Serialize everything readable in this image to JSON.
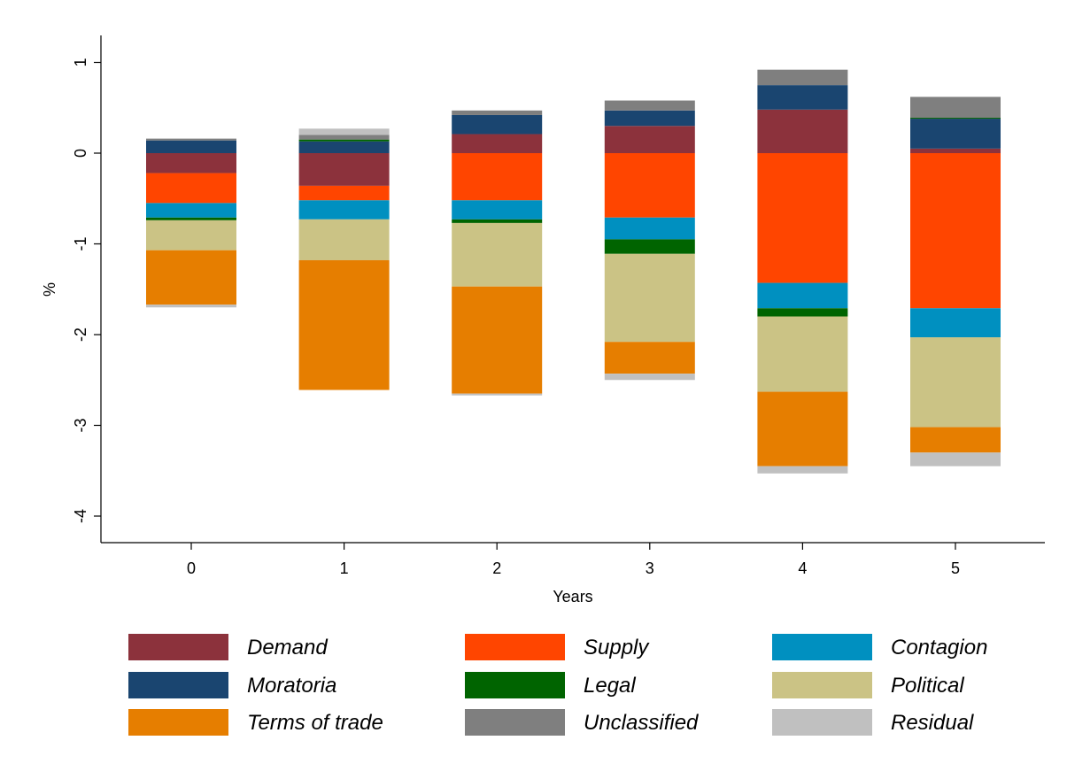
{
  "chart_data": {
    "type": "bar",
    "stacked": true,
    "title": "",
    "xlabel": "Years",
    "ylabel": "%",
    "ylim": [
      -4.3,
      1.3
    ],
    "yticks": [
      1,
      0,
      -1,
      -2,
      -3,
      -4
    ],
    "ytick_labels": [
      "1",
      "0",
      "-1",
      "-2",
      "-3",
      "-4"
    ],
    "categories": [
      "0",
      "1",
      "2",
      "3",
      "4",
      "5"
    ],
    "grid": false,
    "legend_position": "bottom",
    "series": [
      {
        "name": "Demand",
        "color": "#8c323c",
        "values": [
          -0.22,
          -0.36,
          0.21,
          0.3,
          0.48,
          0.05
        ]
      },
      {
        "name": "Supply",
        "color": "#ff4500",
        "values": [
          -0.33,
          -0.16,
          -0.52,
          -0.71,
          -1.43,
          -1.71
        ]
      },
      {
        "name": "Contagion",
        "color": "#0090c0",
        "values": [
          -0.16,
          -0.21,
          -0.21,
          -0.24,
          -0.28,
          -0.32
        ]
      },
      {
        "name": "Moratoria",
        "color": "#1a4570",
        "values": [
          0.14,
          0.13,
          0.21,
          0.17,
          0.27,
          0.33
        ]
      },
      {
        "name": "Legal",
        "color": "#006400",
        "values": [
          -0.03,
          0.02,
          -0.04,
          -0.16,
          -0.09,
          0.01
        ]
      },
      {
        "name": "Political",
        "color": "#cbc385",
        "values": [
          -0.33,
          -0.45,
          -0.7,
          -0.97,
          -0.83,
          -0.99
        ]
      },
      {
        "name": "Terms of trade",
        "color": "#e67e00",
        "values": [
          -0.6,
          -1.43,
          -1.18,
          -0.35,
          -0.82,
          -0.28
        ]
      },
      {
        "name": "Unclassified",
        "color": "#7f7f7f",
        "values": [
          0.02,
          0.05,
          0.05,
          0.11,
          0.17,
          0.23
        ]
      },
      {
        "name": "Residual",
        "color": "#c0c0c0",
        "values": [
          -0.03,
          0.07,
          -0.02,
          -0.07,
          -0.08,
          -0.15
        ]
      }
    ]
  }
}
